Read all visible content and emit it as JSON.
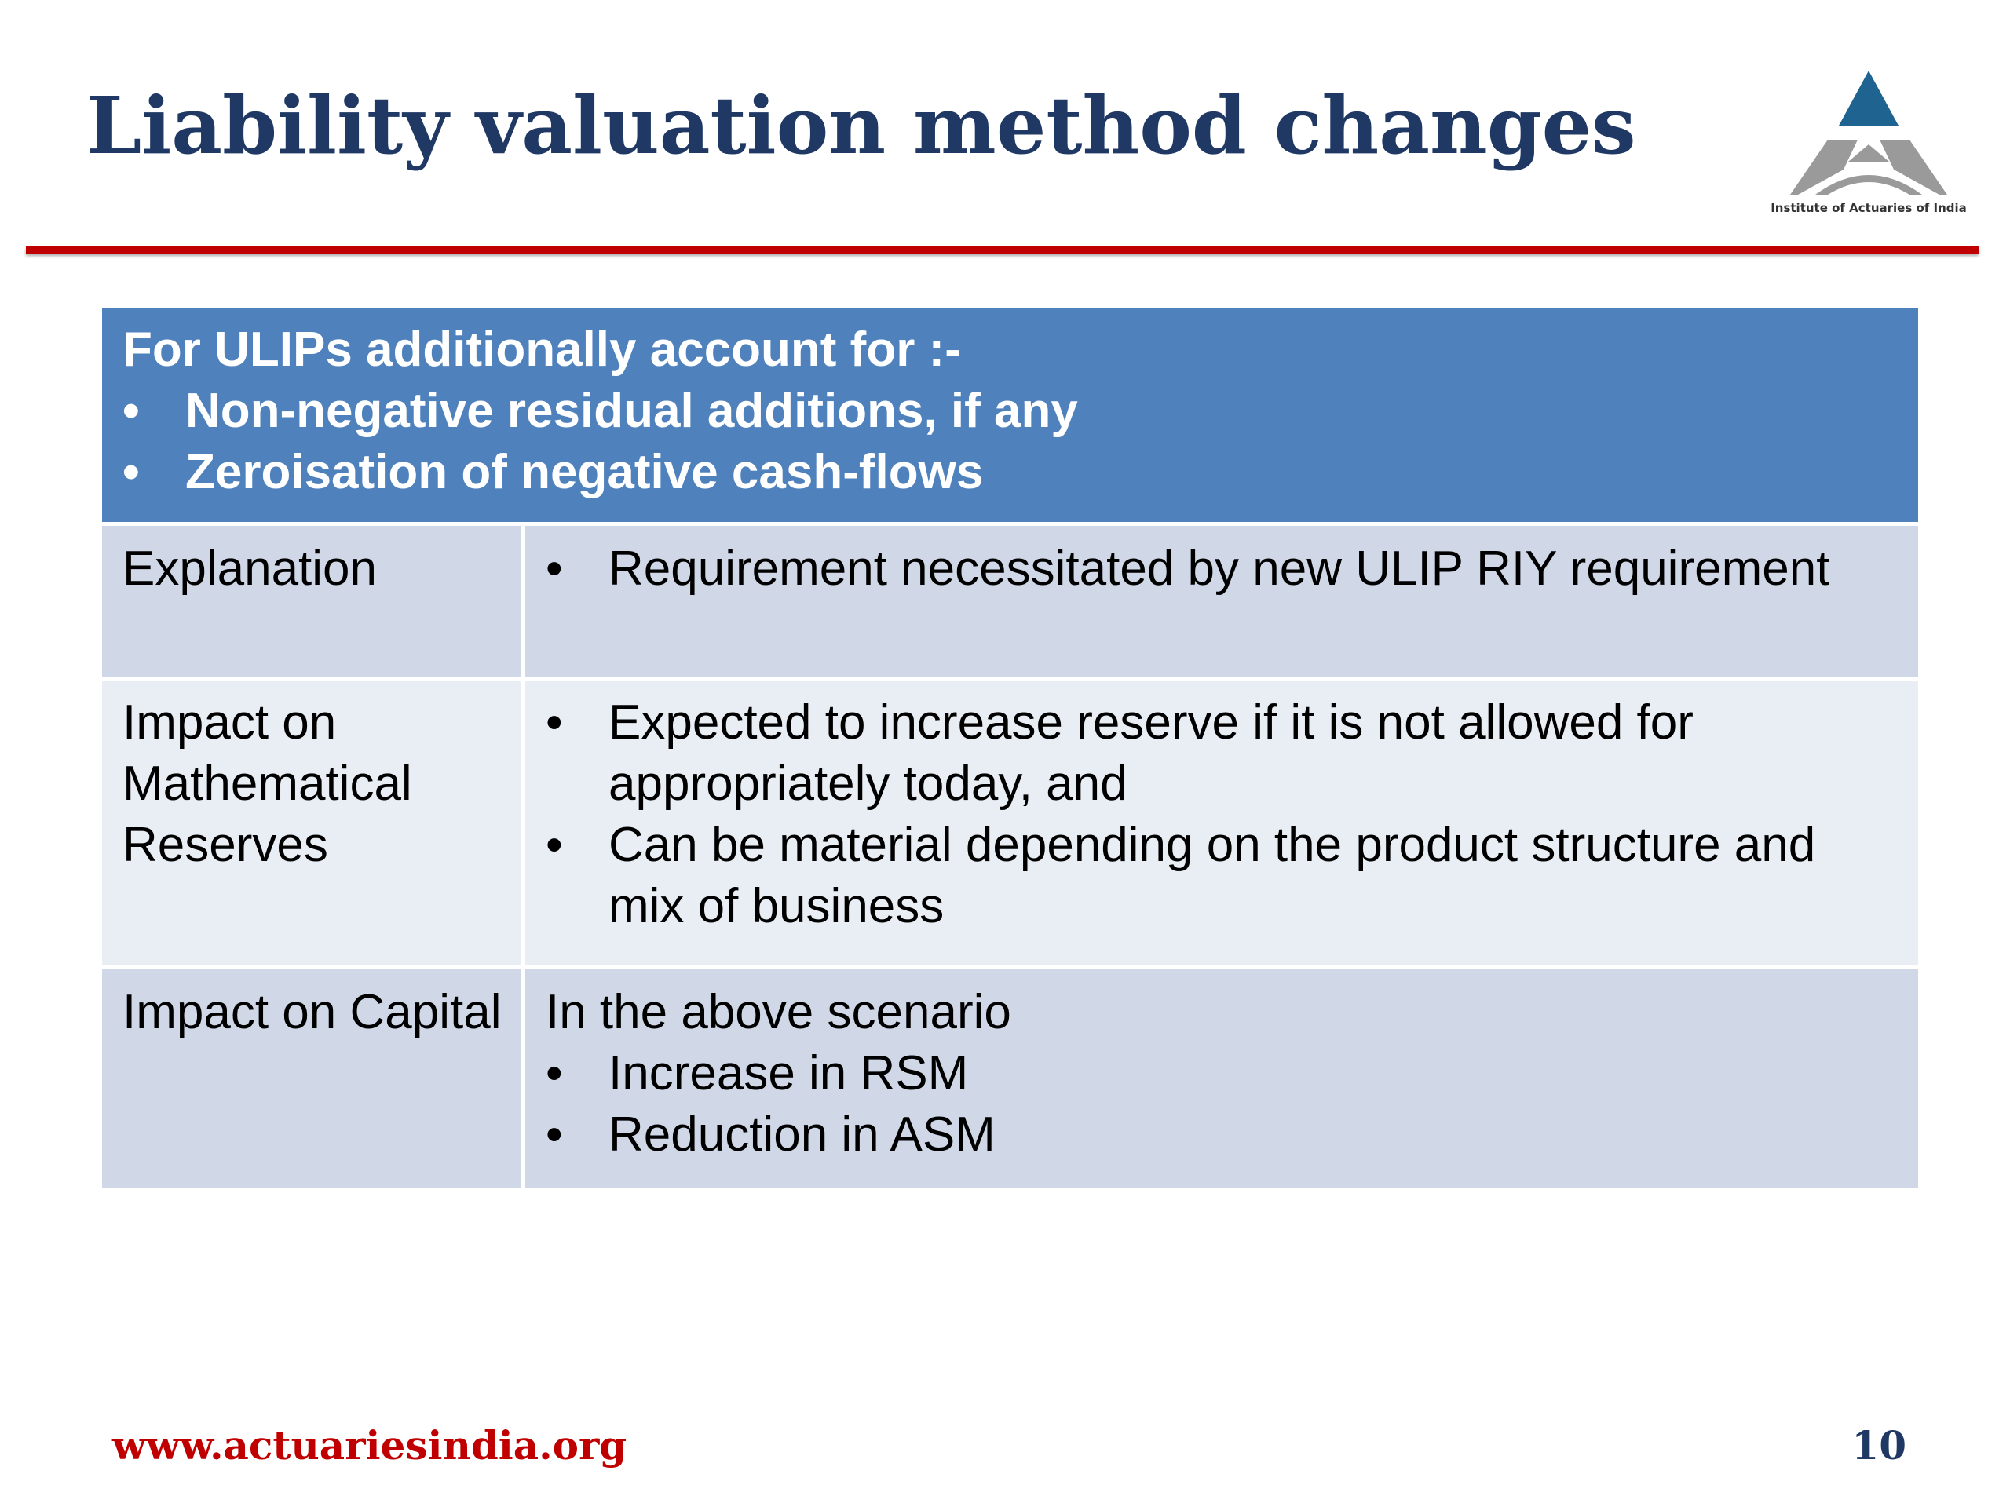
{
  "slide": {
    "title": "Liability valuation method changes",
    "logo": {
      "icon": "institute-of-actuaries-logo",
      "caption": "Institute of Actuaries of India"
    },
    "table": {
      "header": {
        "intro": "For ULIPs additionally account for :-",
        "bullets": [
          "Non-negative residual additions, if any",
          "Zeroisation of  negative cash-flows"
        ]
      },
      "rows": [
        {
          "label": "Explanation",
          "intro": "",
          "bullets": [
            "Requirement necessitated by new ULIP RIY requirement"
          ]
        },
        {
          "label": "Impact on Mathematical Reserves",
          "intro": "",
          "bullets": [
            "Expected to increase reserve if it is not allowed for appropriately today, and",
            "Can be material depending on the product structure and mix of business"
          ]
        },
        {
          "label": "Impact on Capital",
          "intro": "In the above scenario",
          "bullets": [
            "Increase in RSM",
            "Reduction in ASM"
          ]
        }
      ]
    },
    "footer": {
      "url": "www.actuariesindia.org",
      "page_number": "10"
    },
    "colors": {
      "title": "#1f3864",
      "rule": "#c00000",
      "header_bg": "#4f81bd",
      "row_dark": "#d0d8e8",
      "row_light": "#e9edf4",
      "logo_blue": "#1f6391",
      "logo_gray": "#9a9a9a"
    },
    "bullet_glyph": "•"
  }
}
